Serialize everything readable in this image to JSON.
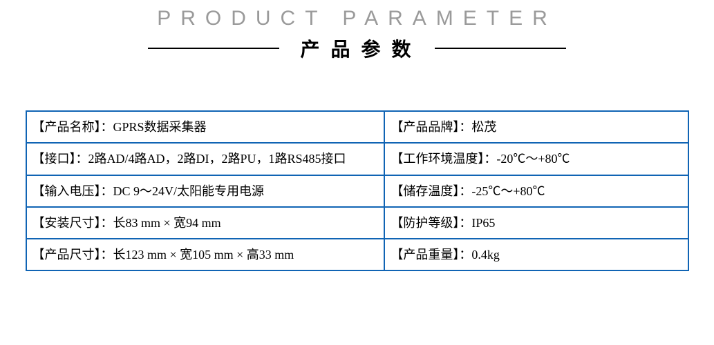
{
  "header": {
    "title_en": "PRODUCT PARAMETER",
    "title_zh": "产品参数"
  },
  "table": {
    "border_color": "#1064b4",
    "rows": [
      {
        "left": "【产品名称】：GPRS数据采集器",
        "right": "【产品品牌】：松茂"
      },
      {
        "left": "【接口】：2路AD/4路AD，2路DI，2路PU，1路RS485接口",
        "right": "【工作环境温度】：-20℃～+80℃"
      },
      {
        "left": "【输入电压】：DC 9～24V/太阳能专用电源",
        "right": "【储存温度】：-25℃～+80℃"
      },
      {
        "left": "【安装尺寸】：长83 mm × 宽94 mm",
        "right": "【防护等级】：IP65"
      },
      {
        "left": "【产品尺寸】：长123 mm × 宽105 mm × 高33 mm",
        "right": "【产品重量】：0.4kg"
      }
    ]
  }
}
